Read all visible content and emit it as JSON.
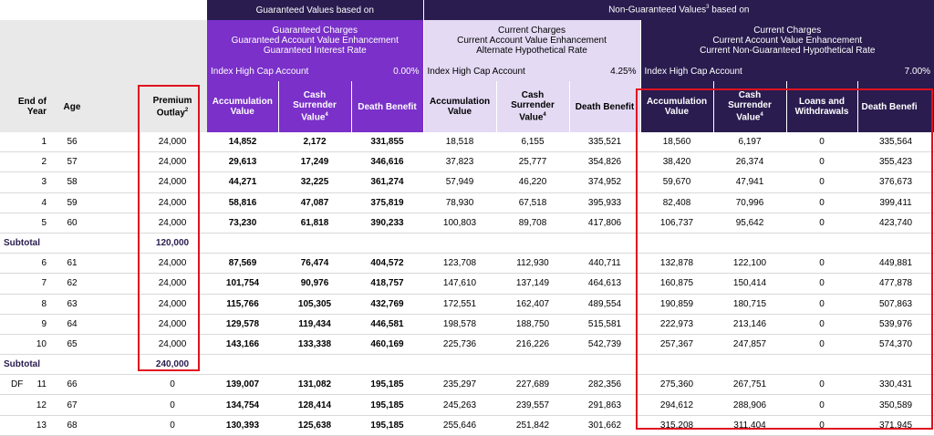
{
  "header": {
    "guaranteed_group": "Guaranteed Values based on",
    "nonguaranteed_group": "Non-Guaranteed Values",
    "nonguaranteed_sup": "3",
    "nonguaranteed_suffix": " based on",
    "scenario1": [
      "Guaranteed Charges",
      "Guaranteed Account Value Enhancement",
      "Guaranteed Interest Rate"
    ],
    "scenario2": [
      "Current Charges",
      "Current Account Value Enhancement",
      "Alternate Hypothetical Rate"
    ],
    "scenario3": [
      "Current Charges",
      "Current Account Value Enhancement",
      "Current Non-Guaranteed Hypothetical Rate"
    ],
    "account_name": "Index High Cap Account",
    "rate1": "0.00%",
    "rate2": "4.25%",
    "rate3": "7.00%"
  },
  "columns": {
    "end_of": "End of",
    "year": "Year",
    "age": "Age",
    "premium": "Premium",
    "outlay": "Outlay",
    "outlay_sup": "2",
    "accumulation": "Accumulation",
    "value": "Value",
    "cash": "Cash",
    "surrender": "Surrender",
    "surrender_value": "Value",
    "surrender_sup": "4",
    "death_benefit": "Death Benefit",
    "death_benefit_cut": "Death Benefi",
    "loans": "Loans and",
    "withdrawals": "Withdrawals"
  },
  "rows": [
    {
      "marker": "",
      "year": "1",
      "age": "56",
      "premium": "24,000",
      "g_acc": "14,852",
      "g_csv": "2,172",
      "g_db": "331,855",
      "a_acc": "18,518",
      "a_csv": "6,155",
      "a_db": "335,521",
      "c_acc": "18,560",
      "c_csv": "6,197",
      "c_loans": "0",
      "c_db": "335,564"
    },
    {
      "marker": "",
      "year": "2",
      "age": "57",
      "premium": "24,000",
      "g_acc": "29,613",
      "g_csv": "17,249",
      "g_db": "346,616",
      "a_acc": "37,823",
      "a_csv": "25,777",
      "a_db": "354,826",
      "c_acc": "38,420",
      "c_csv": "26,374",
      "c_loans": "0",
      "c_db": "355,423"
    },
    {
      "marker": "",
      "year": "3",
      "age": "58",
      "premium": "24,000",
      "g_acc": "44,271",
      "g_csv": "32,225",
      "g_db": "361,274",
      "a_acc": "57,949",
      "a_csv": "46,220",
      "a_db": "374,952",
      "c_acc": "59,670",
      "c_csv": "47,941",
      "c_loans": "0",
      "c_db": "376,673"
    },
    {
      "marker": "",
      "year": "4",
      "age": "59",
      "premium": "24,000",
      "g_acc": "58,816",
      "g_csv": "47,087",
      "g_db": "375,819",
      "a_acc": "78,930",
      "a_csv": "67,518",
      "a_db": "395,933",
      "c_acc": "82,408",
      "c_csv": "70,996",
      "c_loans": "0",
      "c_db": "399,411"
    },
    {
      "marker": "",
      "year": "5",
      "age": "60",
      "premium": "24,000",
      "g_acc": "73,230",
      "g_csv": "61,818",
      "g_db": "390,233",
      "a_acc": "100,803",
      "a_csv": "89,708",
      "a_db": "417,806",
      "c_acc": "106,737",
      "c_csv": "95,642",
      "c_loans": "0",
      "c_db": "423,740"
    },
    {
      "subtotal": true,
      "label": "Subtotal",
      "premium": "120,000"
    },
    {
      "marker": "",
      "year": "6",
      "age": "61",
      "premium": "24,000",
      "g_acc": "87,569",
      "g_csv": "76,474",
      "g_db": "404,572",
      "a_acc": "123,708",
      "a_csv": "112,930",
      "a_db": "440,711",
      "c_acc": "132,878",
      "c_csv": "122,100",
      "c_loans": "0",
      "c_db": "449,881"
    },
    {
      "marker": "",
      "year": "7",
      "age": "62",
      "premium": "24,000",
      "g_acc": "101,754",
      "g_csv": "90,976",
      "g_db": "418,757",
      "a_acc": "147,610",
      "a_csv": "137,149",
      "a_db": "464,613",
      "c_acc": "160,875",
      "c_csv": "150,414",
      "c_loans": "0",
      "c_db": "477,878"
    },
    {
      "marker": "",
      "year": "8",
      "age": "63",
      "premium": "24,000",
      "g_acc": "115,766",
      "g_csv": "105,305",
      "g_db": "432,769",
      "a_acc": "172,551",
      "a_csv": "162,407",
      "a_db": "489,554",
      "c_acc": "190,859",
      "c_csv": "180,715",
      "c_loans": "0",
      "c_db": "507,863"
    },
    {
      "marker": "",
      "year": "9",
      "age": "64",
      "premium": "24,000",
      "g_acc": "129,578",
      "g_csv": "119,434",
      "g_db": "446,581",
      "a_acc": "198,578",
      "a_csv": "188,750",
      "a_db": "515,581",
      "c_acc": "222,973",
      "c_csv": "213,146",
      "c_loans": "0",
      "c_db": "539,976"
    },
    {
      "marker": "",
      "year": "10",
      "age": "65",
      "premium": "24,000",
      "g_acc": "143,166",
      "g_csv": "133,338",
      "g_db": "460,169",
      "a_acc": "225,736",
      "a_csv": "216,226",
      "a_db": "542,739",
      "c_acc": "257,367",
      "c_csv": "247,857",
      "c_loans": "0",
      "c_db": "574,370"
    },
    {
      "subtotal": true,
      "label": "Subtotal",
      "premium": "240,000"
    },
    {
      "marker": "DF",
      "year": "11",
      "age": "66",
      "premium": "0",
      "g_acc": "139,007",
      "g_csv": "131,082",
      "g_db": "195,185",
      "a_acc": "235,297",
      "a_csv": "227,689",
      "a_db": "282,356",
      "c_acc": "275,360",
      "c_csv": "267,751",
      "c_loans": "0",
      "c_db": "330,431"
    },
    {
      "marker": "",
      "year": "12",
      "age": "67",
      "premium": "0",
      "g_acc": "134,754",
      "g_csv": "128,414",
      "g_db": "195,185",
      "a_acc": "245,263",
      "a_csv": "239,557",
      "a_db": "291,863",
      "c_acc": "294,612",
      "c_csv": "288,906",
      "c_loans": "0",
      "c_db": "350,589"
    },
    {
      "marker": "",
      "year": "13",
      "age": "68",
      "premium": "0",
      "g_acc": "130,393",
      "g_csv": "125,638",
      "g_db": "195,185",
      "a_acc": "255,646",
      "a_csv": "251,842",
      "a_db": "301,662",
      "c_acc": "315,208",
      "c_csv": "311,404",
      "c_loans": "0",
      "c_db": "371,945"
    }
  ]
}
